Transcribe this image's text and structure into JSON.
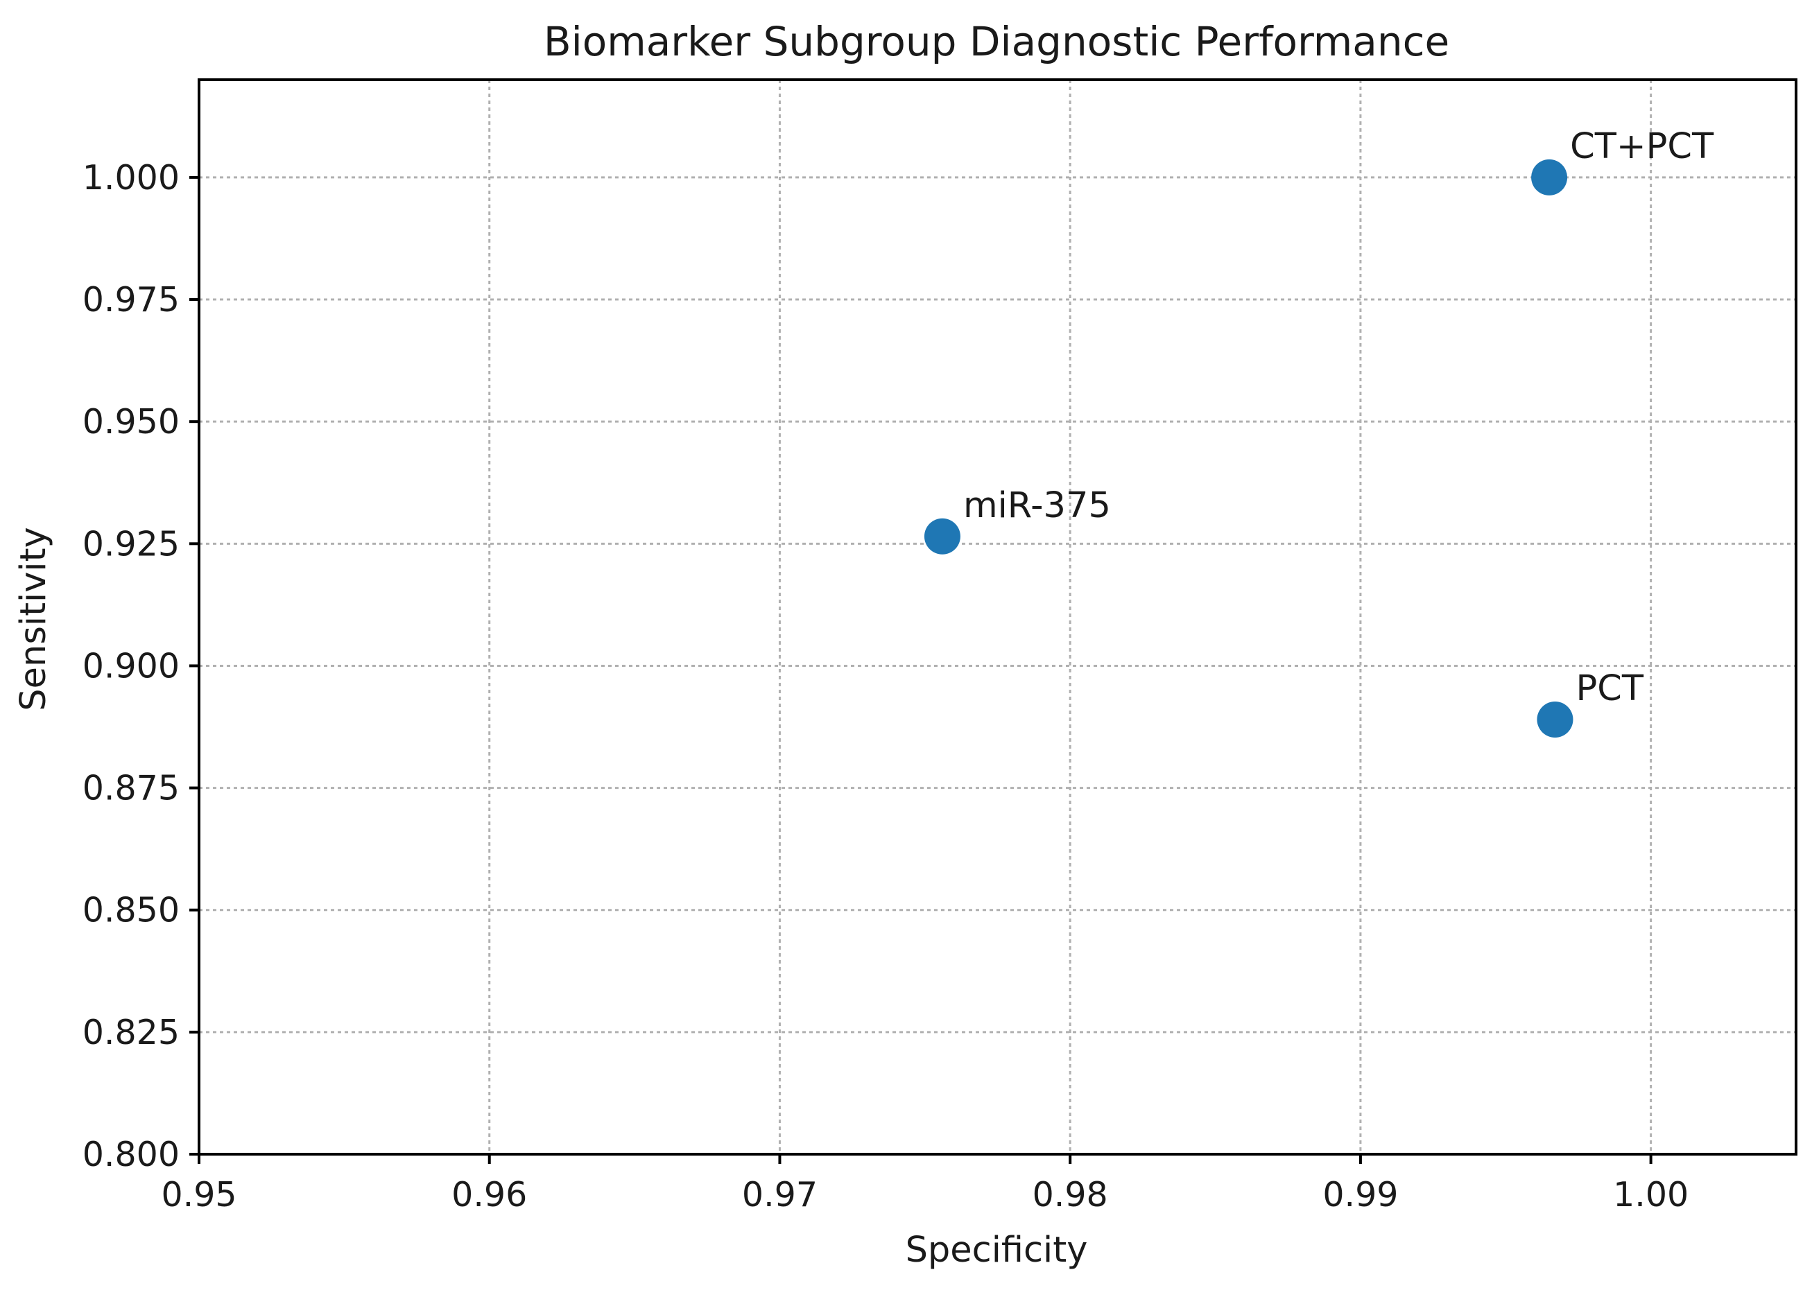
{
  "chart_data": {
    "type": "scatter",
    "title": "Biomarker Subgroup Diagnostic Performance",
    "xlabel": "Specificity",
    "ylabel": "Sensitivity",
    "xlim": [
      0.95,
      1.005
    ],
    "ylim": [
      0.8,
      1.02
    ],
    "xticks": [
      0.95,
      0.96,
      0.97,
      0.98,
      0.99,
      1.0
    ],
    "xtick_labels": [
      "0.95",
      "0.96",
      "0.97",
      "0.98",
      "0.99",
      "1.00"
    ],
    "yticks": [
      0.8,
      0.825,
      0.85,
      0.875,
      0.9,
      0.925,
      0.95,
      0.975,
      1.0
    ],
    "ytick_labels": [
      "0.800",
      "0.825",
      "0.850",
      "0.875",
      "0.900",
      "0.925",
      "0.950",
      "0.975",
      "1.000"
    ],
    "grid": true,
    "marker_color": "#1f77b4",
    "points": [
      {
        "label": "miR-375",
        "x": 0.9756,
        "y": 0.9265
      },
      {
        "label": "CT+PCT",
        "x": 0.9965,
        "y": 1.0
      },
      {
        "label": "PCT",
        "x": 0.9967,
        "y": 0.889
      }
    ]
  }
}
